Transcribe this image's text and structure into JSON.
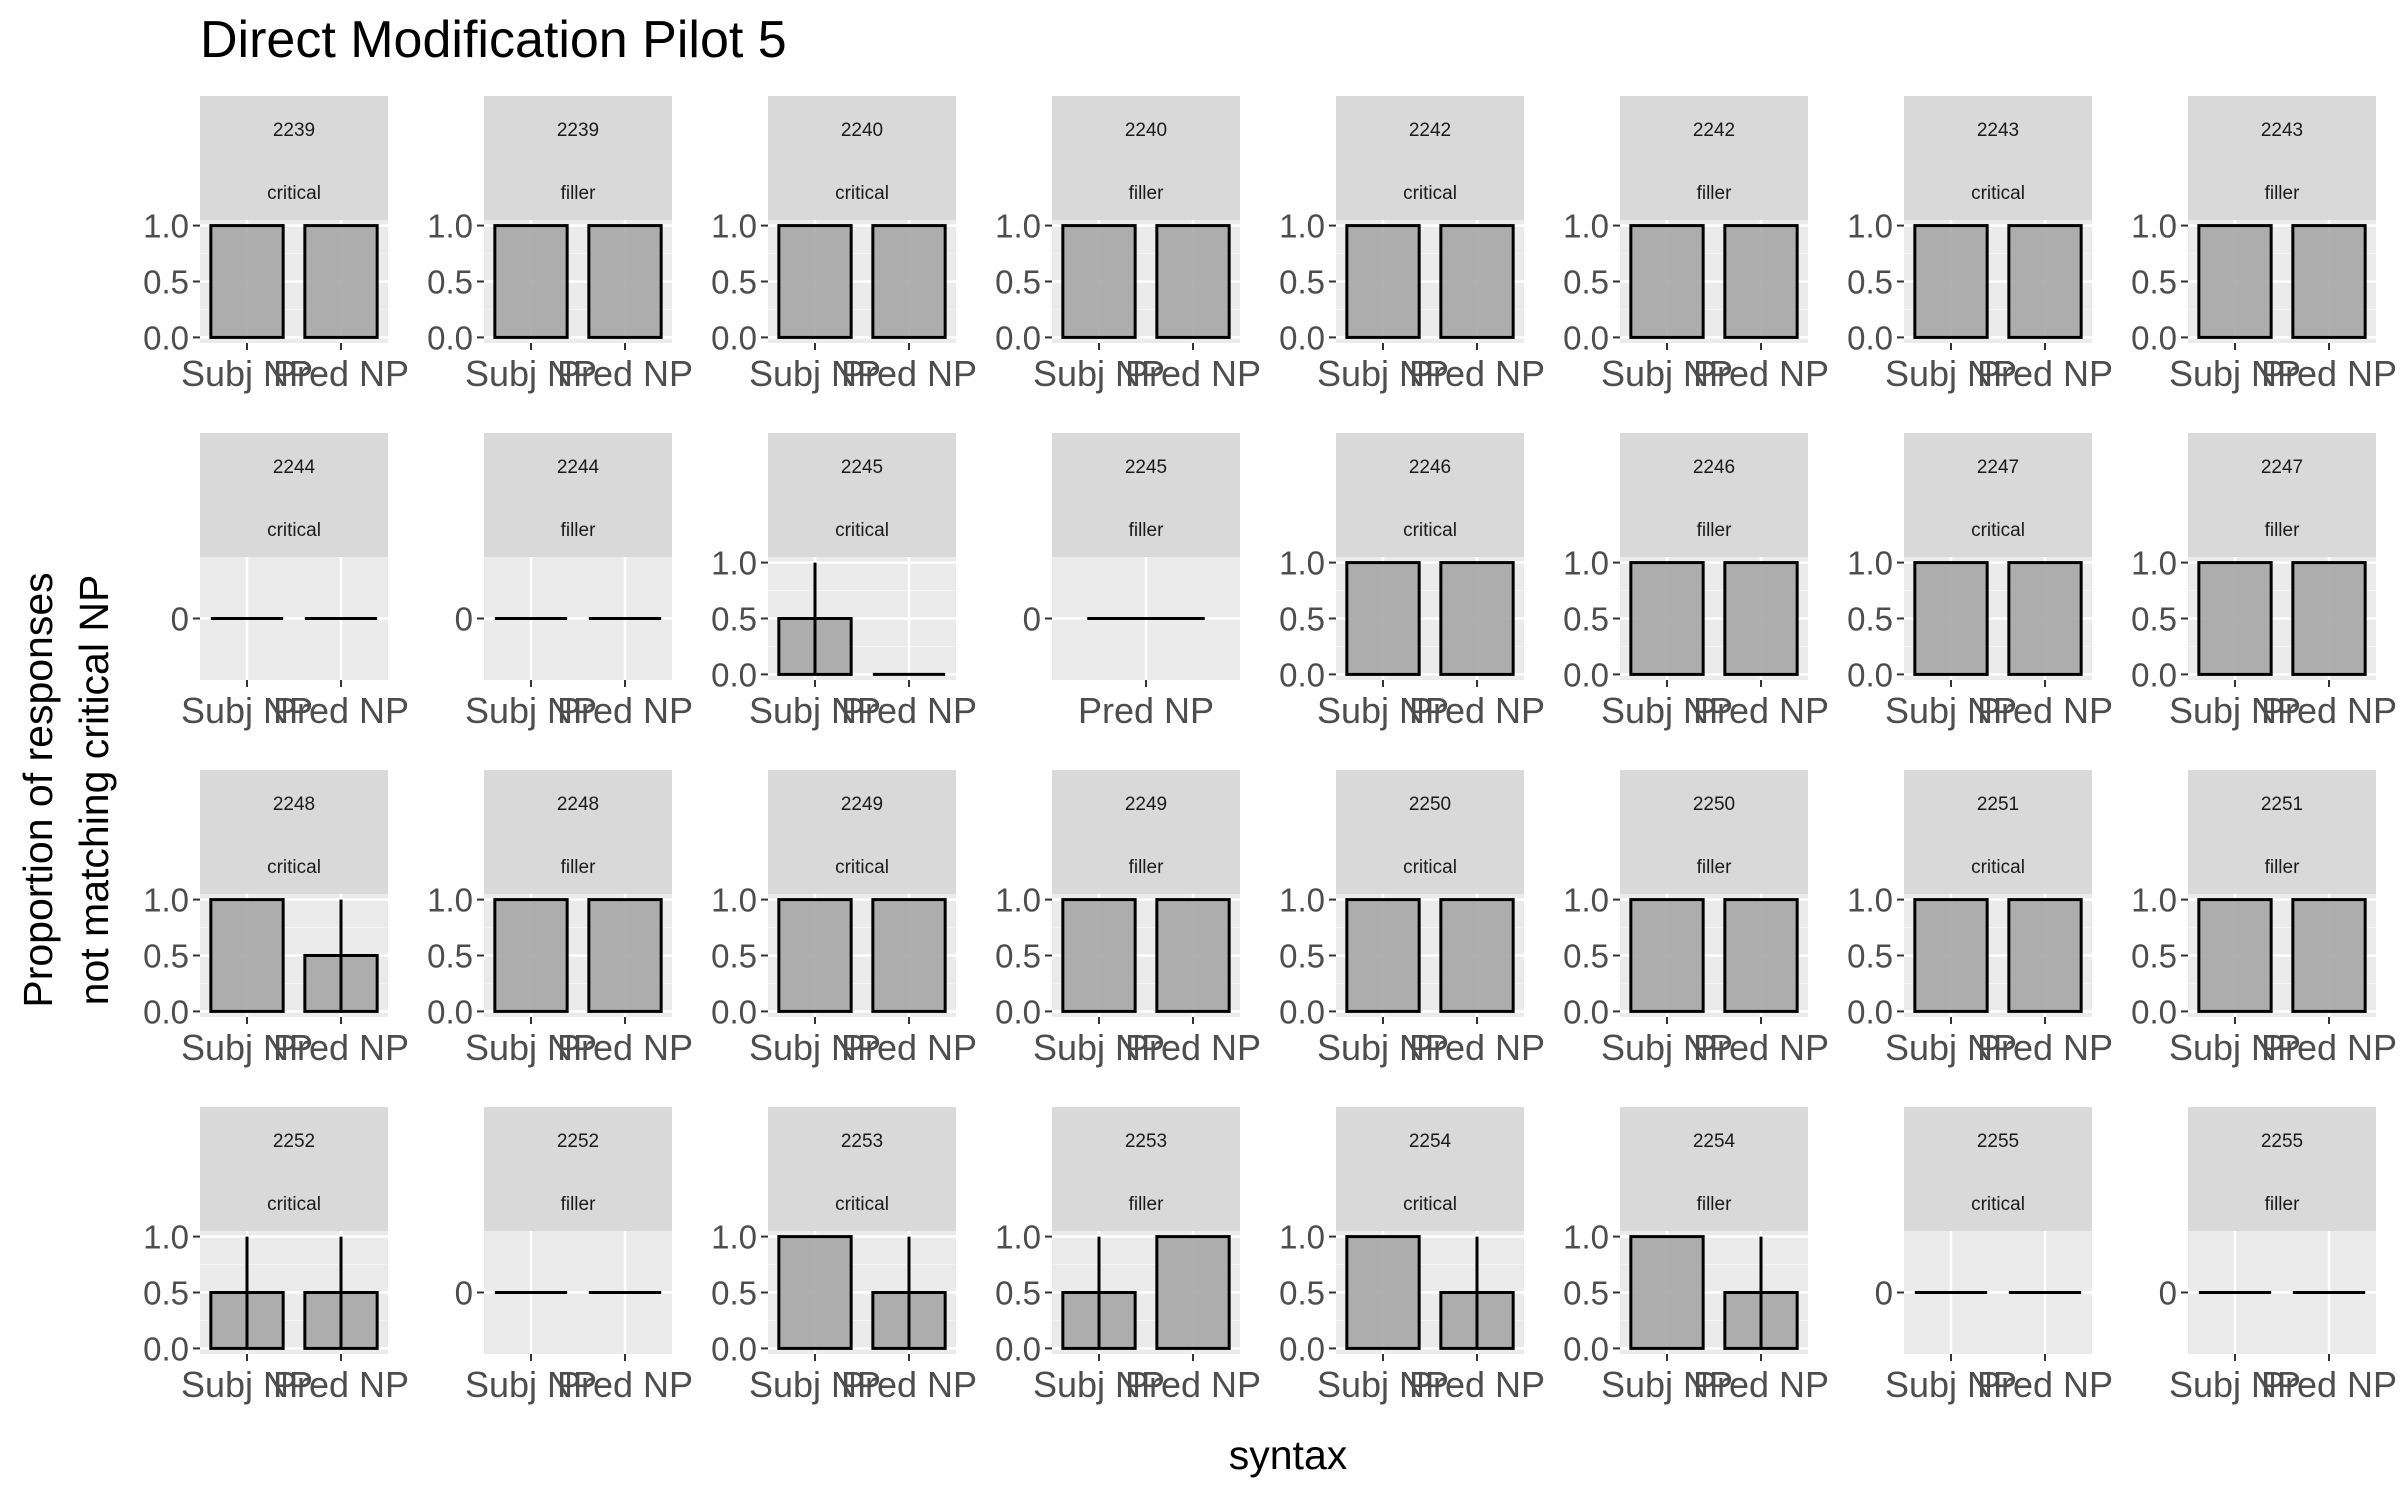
{
  "chart_data": {
    "type": "bar",
    "title": "Direct Modification Pilot 5",
    "xlabel": "syntax",
    "ylabel_lines": [
      "Proportion of responses",
      "not matching critical NP"
    ],
    "facet_layout": "4 rows x 8 columns",
    "facet_strips": [
      "item",
      "condition"
    ],
    "categories": [
      "Subj NP",
      "Pred NP"
    ],
    "ylim": [
      0,
      1
    ],
    "y_ticks": [
      "0.0",
      "0.5",
      "1.0"
    ],
    "zero_tick": "0",
    "grid": true,
    "bar_fill": "#a6a6a6",
    "panel_background": "#ebebeb",
    "strip_background": "#d9d9d9",
    "facets": [
      {
        "item": "2239",
        "condition": "critical",
        "values": [
          1,
          1
        ],
        "errors": [
          0,
          0
        ]
      },
      {
        "item": "2239",
        "condition": "filler",
        "values": [
          1,
          1
        ],
        "errors": [
          0,
          0
        ]
      },
      {
        "item": "2240",
        "condition": "critical",
        "values": [
          1,
          1
        ],
        "errors": [
          0,
          0
        ]
      },
      {
        "item": "2240",
        "condition": "filler",
        "values": [
          1,
          1
        ],
        "errors": [
          0,
          0
        ]
      },
      {
        "item": "2242",
        "condition": "critical",
        "values": [
          1,
          1
        ],
        "errors": [
          0,
          0
        ]
      },
      {
        "item": "2242",
        "condition": "filler",
        "values": [
          1,
          1
        ],
        "errors": [
          0,
          0
        ]
      },
      {
        "item": "2243",
        "condition": "critical",
        "values": [
          1,
          1
        ],
        "errors": [
          0,
          0
        ]
      },
      {
        "item": "2243",
        "condition": "filler",
        "values": [
          1,
          1
        ],
        "errors": [
          0,
          0
        ]
      },
      {
        "item": "2244",
        "condition": "critical",
        "values": [
          0,
          0
        ],
        "errors": [
          0,
          0
        ]
      },
      {
        "item": "2244",
        "condition": "filler",
        "values": [
          0,
          0
        ],
        "errors": [
          0,
          0
        ]
      },
      {
        "item": "2245",
        "condition": "critical",
        "values": [
          0.5,
          0
        ],
        "errors": [
          0.5,
          0
        ]
      },
      {
        "item": "2245",
        "condition": "filler",
        "categories": [
          "Pred NP"
        ],
        "values": [
          0
        ],
        "errors": [
          0
        ]
      },
      {
        "item": "2246",
        "condition": "critical",
        "values": [
          1,
          1
        ],
        "errors": [
          0,
          0
        ]
      },
      {
        "item": "2246",
        "condition": "filler",
        "values": [
          1,
          1
        ],
        "errors": [
          0,
          0
        ]
      },
      {
        "item": "2247",
        "condition": "critical",
        "values": [
          1,
          1
        ],
        "errors": [
          0,
          0
        ]
      },
      {
        "item": "2247",
        "condition": "filler",
        "values": [
          1,
          1
        ],
        "errors": [
          0,
          0
        ]
      },
      {
        "item": "2248",
        "condition": "critical",
        "values": [
          1,
          0.5
        ],
        "errors": [
          0,
          0.5
        ]
      },
      {
        "item": "2248",
        "condition": "filler",
        "values": [
          1,
          1
        ],
        "errors": [
          0,
          0
        ]
      },
      {
        "item": "2249",
        "condition": "critical",
        "values": [
          1,
          1
        ],
        "errors": [
          0,
          0
        ]
      },
      {
        "item": "2249",
        "condition": "filler",
        "values": [
          1,
          1
        ],
        "errors": [
          0,
          0
        ]
      },
      {
        "item": "2250",
        "condition": "critical",
        "values": [
          1,
          1
        ],
        "errors": [
          0,
          0
        ]
      },
      {
        "item": "2250",
        "condition": "filler",
        "values": [
          1,
          1
        ],
        "errors": [
          0,
          0
        ]
      },
      {
        "item": "2251",
        "condition": "critical",
        "values": [
          1,
          1
        ],
        "errors": [
          0,
          0
        ]
      },
      {
        "item": "2251",
        "condition": "filler",
        "values": [
          1,
          1
        ],
        "errors": [
          0,
          0
        ]
      },
      {
        "item": "2252",
        "condition": "critical",
        "values": [
          0.5,
          0.5
        ],
        "errors": [
          0.5,
          0.5
        ]
      },
      {
        "item": "2252",
        "condition": "filler",
        "values": [
          0,
          0
        ],
        "errors": [
          0,
          0
        ]
      },
      {
        "item": "2253",
        "condition": "critical",
        "values": [
          1,
          0.5
        ],
        "errors": [
          0,
          0.5
        ]
      },
      {
        "item": "2253",
        "condition": "filler",
        "values": [
          0.5,
          1
        ],
        "errors": [
          0.5,
          0
        ]
      },
      {
        "item": "2254",
        "condition": "critical",
        "values": [
          1,
          0.5
        ],
        "errors": [
          0,
          0.5
        ]
      },
      {
        "item": "2254",
        "condition": "filler",
        "values": [
          1,
          0.5
        ],
        "errors": [
          0,
          0.5
        ]
      },
      {
        "item": "2255",
        "condition": "critical",
        "values": [
          0,
          0
        ],
        "errors": [
          0,
          0
        ]
      },
      {
        "item": "2255",
        "condition": "filler",
        "values": [
          0,
          0
        ],
        "errors": [
          0,
          0
        ]
      }
    ]
  }
}
